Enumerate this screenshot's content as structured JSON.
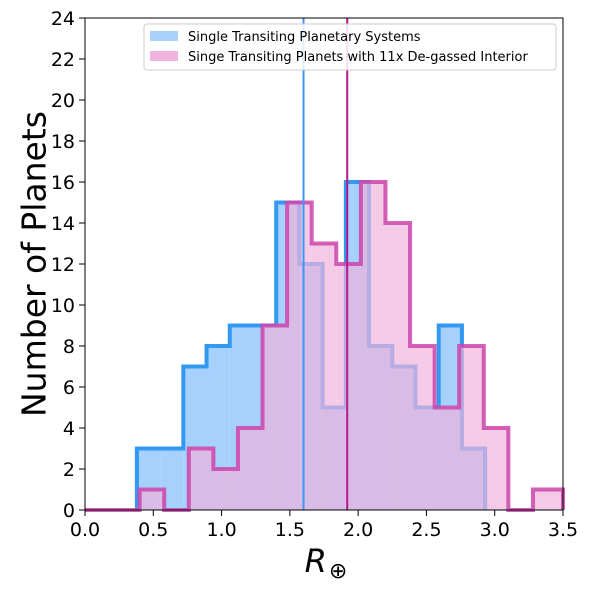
{
  "chart_data": {
    "type": "histogram",
    "xlabel": "R",
    "xlabel_subscript": "⊕",
    "ylabel": "Number of Planets",
    "xlim": [
      0,
      3.5
    ],
    "ylim": [
      0,
      24
    ],
    "xticks": [
      "0.0",
      "0.5",
      "1.0",
      "1.5",
      "2.0",
      "2.5",
      "3.0",
      "3.5"
    ],
    "yticks": [
      "0",
      "2",
      "4",
      "6",
      "8",
      "10",
      "12",
      "14",
      "16",
      "18",
      "20",
      "22",
      "24"
    ],
    "grid": false,
    "legend_position": "top-center",
    "series": [
      {
        "name": "Single Transiting Planetary Systems",
        "fill_color": "#a6d1fc",
        "line_color": "#3399f0",
        "bin_edges": [
          0.38,
          0.55,
          0.72,
          0.89,
          1.06,
          1.23,
          1.4,
          1.57,
          1.74,
          1.91,
          2.08,
          2.25,
          2.42,
          2.59,
          2.76,
          2.93
        ],
        "counts": [
          3,
          3,
          7,
          8,
          9,
          9,
          15,
          12,
          5,
          16,
          8,
          7,
          5,
          9,
          3
        ],
        "mean_line_x": 1.6,
        "mean_line_color": "#3c95f2"
      },
      {
        "name": "Singe Transiting Planets with 11x De-gassed Interior",
        "fill_color": "#efb3dd",
        "line_color": "#cc44aa",
        "bin_edges": [
          0.0,
          0.2,
          0.4,
          0.58,
          0.76,
          0.94,
          1.12,
          1.3,
          1.48,
          1.66,
          1.84,
          2.02,
          2.2,
          2.38,
          2.56,
          2.74,
          2.92,
          3.1,
          3.28,
          3.5
        ],
        "counts": [
          0,
          0,
          1,
          0,
          3,
          2,
          4,
          9,
          15,
          13,
          12,
          16,
          14,
          8,
          5,
          8,
          4,
          0,
          1
        ],
        "mean_line_x": 1.92,
        "mean_line_color": "#b5178c"
      }
    ]
  }
}
